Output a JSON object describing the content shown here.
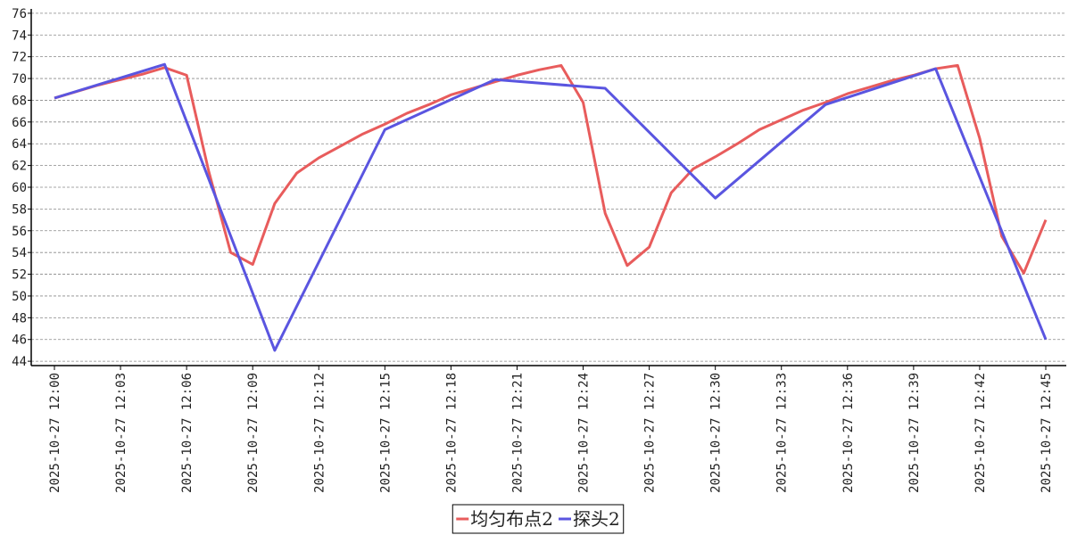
{
  "chart_data": {
    "type": "line",
    "xticks": [
      "2025-10-27 12:00",
      "2025-10-27 12:03",
      "2025-10-27 12:06",
      "2025-10-27 12:09",
      "2025-10-27 12:12",
      "2025-10-27 12:15",
      "2025-10-27 12:18",
      "2025-10-27 12:21",
      "2025-10-27 12:24",
      "2025-10-27 12:27",
      "2025-10-27 12:30",
      "2025-10-27 12:33",
      "2025-10-27 12:36",
      "2025-10-27 12:39",
      "2025-10-27 12:42",
      "2025-10-27 12:45"
    ],
    "ylim": [
      43.6,
      76.4
    ],
    "yticks": [
      44,
      46,
      48,
      50,
      52,
      54,
      56,
      58,
      60,
      62,
      64,
      66,
      68,
      70,
      72,
      74,
      76
    ],
    "grid": true,
    "legend": "bottom",
    "series": [
      {
        "name": "均匀布点2",
        "color": "#e85c5c",
        "x": [
          "2025-10-27 12:00",
          "2025-10-27 12:01",
          "2025-10-27 12:02",
          "2025-10-27 12:03",
          "2025-10-27 12:04",
          "2025-10-27 12:05",
          "2025-10-27 12:06",
          "2025-10-27 12:07",
          "2025-10-27 12:08",
          "2025-10-27 12:09",
          "2025-10-27 12:10",
          "2025-10-27 12:11",
          "2025-10-27 12:12",
          "2025-10-27 12:13",
          "2025-10-27 12:14",
          "2025-10-27 12:15",
          "2025-10-27 12:16",
          "2025-10-27 12:17",
          "2025-10-27 12:18",
          "2025-10-27 12:19",
          "2025-10-27 12:20",
          "2025-10-27 12:21",
          "2025-10-27 12:22",
          "2025-10-27 12:23",
          "2025-10-27 12:24",
          "2025-10-27 12:25",
          "2025-10-27 12:26",
          "2025-10-27 12:27",
          "2025-10-27 12:28",
          "2025-10-27 12:29",
          "2025-10-27 12:30",
          "2025-10-27 12:31",
          "2025-10-27 12:32",
          "2025-10-27 12:33",
          "2025-10-27 12:34",
          "2025-10-27 12:35",
          "2025-10-27 12:36",
          "2025-10-27 12:37",
          "2025-10-27 12:38",
          "2025-10-27 12:39",
          "2025-10-27 12:40",
          "2025-10-27 12:41",
          "2025-10-27 12:42",
          "2025-10-27 12:43",
          "2025-10-27 12:44",
          "2025-10-27 12:45"
        ],
        "values": [
          68.2,
          68.8,
          69.4,
          69.9,
          70.4,
          71.0,
          70.3,
          61.5,
          54.0,
          52.9,
          58.5,
          61.3,
          62.7,
          63.8,
          64.9,
          65.8,
          66.8,
          67.6,
          68.5,
          69.1,
          69.7,
          70.3,
          70.8,
          71.2,
          67.8,
          57.6,
          52.8,
          54.5,
          59.5,
          61.7,
          62.8,
          64.0,
          65.3,
          66.2,
          67.1,
          67.8,
          68.6,
          69.2,
          69.8,
          70.3,
          70.9,
          71.2,
          64.5,
          55.5,
          52.1,
          57.0
        ]
      },
      {
        "name": "探头2",
        "color": "#5a55e0",
        "x": [
          "2025-10-27 12:00",
          "2025-10-27 12:05",
          "2025-10-27 12:10",
          "2025-10-27 12:15",
          "2025-10-27 12:20",
          "2025-10-27 12:25",
          "2025-10-27 12:30",
          "2025-10-27 12:35",
          "2025-10-27 12:40",
          "2025-10-27 12:45"
        ],
        "values": [
          68.2,
          71.3,
          45.0,
          65.3,
          69.9,
          69.1,
          59.0,
          67.6,
          70.9,
          46.0
        ]
      }
    ]
  }
}
